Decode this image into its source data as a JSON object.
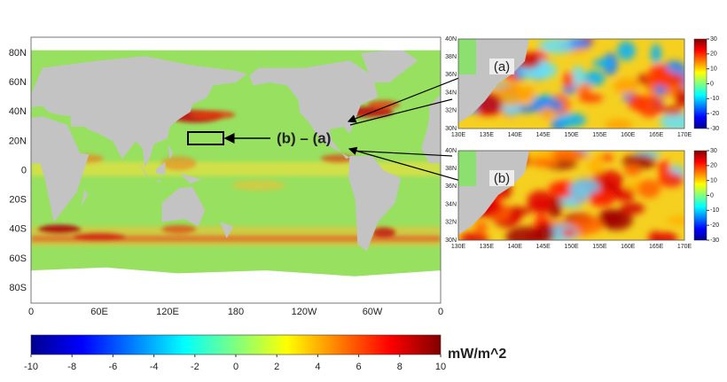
{
  "main_map": {
    "x_labels": [
      "0",
      "60E",
      "120E",
      "180",
      "120W",
      "60W",
      "0"
    ],
    "y_labels": [
      "80N",
      "60N",
      "40N",
      "20N",
      "0",
      "20S",
      "40S",
      "60S",
      "80S"
    ],
    "annotation": "(b) – (a)"
  },
  "colorbar": {
    "ticks": [
      -10,
      -8,
      -6,
      -4,
      -2,
      0,
      2,
      4,
      6,
      8,
      10
    ],
    "unit": "mW/m^2"
  },
  "insets": [
    {
      "label": "(a)",
      "x_labels": [
        "130E",
        "135E",
        "140E",
        "145E",
        "150E",
        "155E",
        "160E",
        "165E",
        "170E"
      ],
      "y_labels": [
        "40N",
        "38N",
        "36N",
        "34N",
        "32N",
        "30N"
      ],
      "colorbar_ticks": [
        30,
        20,
        10,
        0,
        -10,
        -20,
        -30
      ]
    },
    {
      "label": "(b)",
      "x_labels": [
        "130E",
        "135E",
        "140E",
        "145E",
        "150E",
        "155E",
        "160E",
        "165E",
        "170E"
      ],
      "y_labels": [
        "40N",
        "38N",
        "36N",
        "34N",
        "32N",
        "30N"
      ],
      "colorbar_ticks": [
        30,
        20,
        10,
        0,
        -10,
        -20,
        -30
      ]
    }
  ]
}
